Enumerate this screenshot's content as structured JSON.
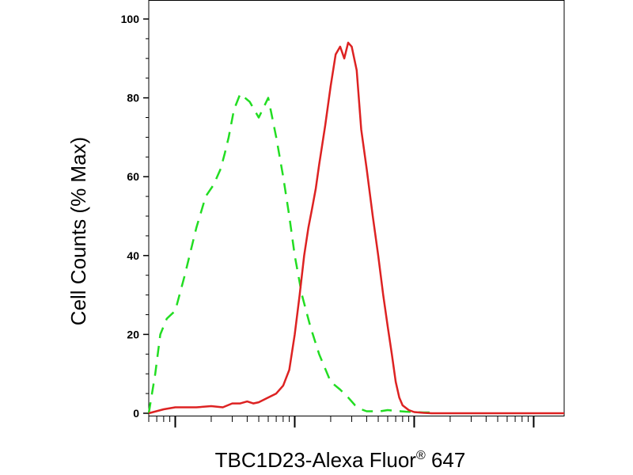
{
  "chart_data": {
    "type": "line",
    "title": "",
    "xlabel": "TBC1D23-Alexa Fluor",
    "xlabel_superscript": "®",
    "xlabel_suffix": " 647",
    "ylabel": "Cell Counts (% Max)",
    "xscale": "log",
    "ylim": [
      0,
      100
    ],
    "yticks": [
      0,
      20,
      40,
      60,
      80,
      100
    ],
    "ytick_labels": [
      "0",
      "20",
      "40",
      "60",
      "80",
      "100"
    ],
    "xlim": [
      0.6,
      1800
    ],
    "x_major_ticks": [
      1,
      10,
      100,
      1000
    ],
    "grid": false,
    "legend": "none",
    "series": [
      {
        "style": "dashed",
        "color": "#22dd22",
        "x": [
          0.6,
          0.68,
          0.75,
          0.85,
          1.0,
          1.2,
          1.5,
          1.8,
          2.1,
          2.4,
          2.6,
          2.8,
          3.1,
          3.5,
          4.2,
          5.0,
          6.0,
          7.0,
          8.0,
          9.0,
          10.0,
          11.5,
          13.5,
          16.0,
          20.0,
          24.0,
          28.0,
          32.0,
          36.0,
          40.0,
          45.0,
          52.0,
          60.0,
          70.0,
          85.0,
          100.0,
          120.0,
          150.0
        ],
        "y": [
          0,
          10,
          20,
          24,
          26,
          35,
          47,
          55,
          58,
          62,
          66,
          70,
          77,
          81,
          79,
          75,
          80,
          70,
          60,
          50,
          40,
          30,
          22,
          15,
          8,
          6,
          4,
          2,
          1,
          0.5,
          0.5,
          0.5,
          0.8,
          0.6,
          0.4,
          0.3,
          0.2,
          0.2
        ]
      },
      {
        "style": "solid",
        "color": "#dd2222",
        "x": [
          0.6,
          0.8,
          1.0,
          1.5,
          2.0,
          2.5,
          3.0,
          3.5,
          4.0,
          4.5,
          5.0,
          6.0,
          7.0,
          8.0,
          9.0,
          10.0,
          11.0,
          12.0,
          13.0,
          14.0,
          15.0,
          16.0,
          18.0,
          20.0,
          22.0,
          24.0,
          26.0,
          28.0,
          30.0,
          33.0,
          36.0,
          40.0,
          45.0,
          50.0,
          55.0,
          60.0,
          65.0,
          70.0,
          75.0,
          80.0,
          90.0,
          100.0,
          110.0,
          120.0,
          140.0,
          170.0,
          200.0,
          300.0,
          500.0,
          800.0,
          1200.0,
          1800.0
        ],
        "y": [
          0,
          1,
          1.5,
          1.5,
          1.8,
          1.5,
          2.5,
          2.5,
          3,
          2.5,
          2.8,
          4,
          5,
          7,
          11,
          20,
          30,
          40,
          47,
          52,
          57,
          63,
          73,
          83,
          91,
          93,
          90,
          94,
          93,
          87,
          72,
          62,
          50,
          40,
          30,
          22,
          15,
          8,
          4,
          2,
          0.8,
          0.3,
          0.2,
          0.1,
          0,
          0,
          0,
          0,
          0,
          0,
          0,
          0
        ]
      }
    ]
  }
}
